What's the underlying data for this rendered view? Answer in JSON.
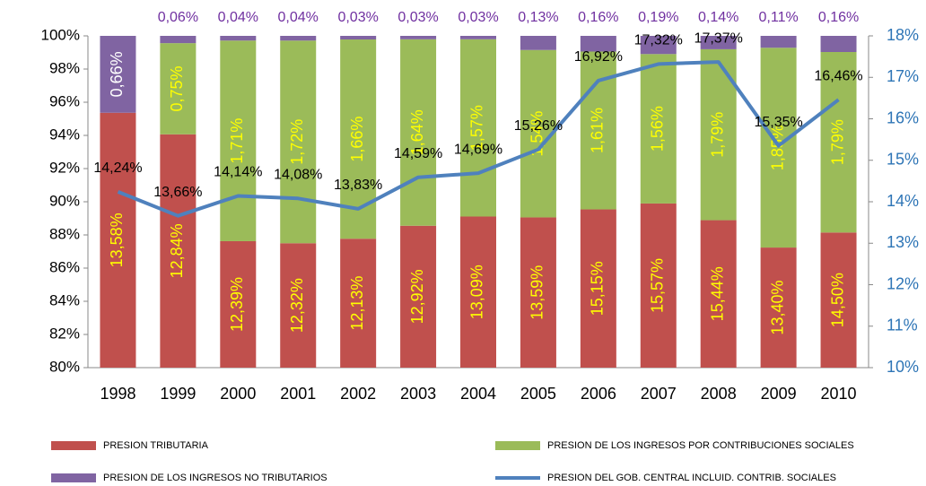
{
  "chart_data": {
    "type": "bar",
    "stacked": "percent",
    "categories": [
      "1998",
      "1999",
      "2000",
      "2001",
      "2002",
      "2003",
      "2004",
      "2005",
      "2006",
      "2007",
      "2008",
      "2009",
      "2010"
    ],
    "series": [
      {
        "name": "PRESION TRIBUTARIA",
        "color": "#c0504d",
        "values": [
          13.58,
          12.84,
          12.39,
          12.32,
          12.13,
          12.92,
          13.09,
          13.59,
          15.15,
          15.57,
          15.44,
          13.4,
          14.5
        ],
        "value_labels": [
          "13,58%",
          "12,84%",
          "12,39%",
          "12,32%",
          "12,13%",
          "12,92%",
          "13,09%",
          "13,59%",
          "15,15%",
          "15,57%",
          "15,44%",
          "13,40%",
          "14,50%"
        ]
      },
      {
        "name": "PRESION DE LOS INGRESOS POR CONTRIBUCIONES SOCIALES",
        "color": "#9bbb59",
        "values": [
          null,
          0.75,
          1.71,
          1.72,
          1.66,
          1.64,
          1.57,
          1.54,
          1.61,
          1.56,
          1.79,
          1.85,
          1.79
        ],
        "value_labels": [
          null,
          "0,75%",
          "1,71%",
          "1,72%",
          "1,66%",
          "1,64%",
          "1,57%",
          "1,54%",
          "1,61%",
          "1,56%",
          "1,79%",
          "1,85%",
          "1,79%"
        ]
      },
      {
        "name": "PRESION DE LOS INGRESOS NO TRIBUTARIOS",
        "color": "#8064a2",
        "values": [
          0.66,
          0.06,
          0.04,
          0.04,
          0.03,
          0.03,
          0.03,
          0.13,
          0.16,
          0.19,
          0.14,
          0.11,
          0.16
        ],
        "value_labels": [
          "0,66%",
          "0,06%",
          "0,04%",
          "0,04%",
          "0,03%",
          "0,03%",
          "0,03%",
          "0,13%",
          "0,16%",
          "0,19%",
          "0,14%",
          "0,11%",
          "0,16%"
        ]
      },
      {
        "name": "PRESION DEL GOB. CENTRAL INCLUID. CONTRIB. SOCIALES",
        "color": "#4f81bd",
        "type": "line",
        "axis": "y2",
        "values": [
          14.24,
          13.66,
          14.14,
          14.08,
          13.83,
          14.59,
          14.69,
          15.26,
          16.92,
          17.32,
          17.37,
          15.35,
          16.46
        ],
        "value_labels": [
          "14,24%",
          "13,66%",
          "14,14%",
          "14,08%",
          "13,83%",
          "14,59%",
          "14,69%",
          "15,26%",
          "16,92%",
          "17,32%",
          "17,37%",
          "15,35%",
          "16,46%"
        ]
      }
    ],
    "ylim": [
      80,
      100
    ],
    "yticks": [
      {
        "value": 80,
        "label": "80%"
      },
      {
        "value": 82,
        "label": "82%"
      },
      {
        "value": 84,
        "label": "84%"
      },
      {
        "value": 86,
        "label": "86%"
      },
      {
        "value": 88,
        "label": "88%"
      },
      {
        "value": 90,
        "label": "90%"
      },
      {
        "value": 92,
        "label": "92%"
      },
      {
        "value": 94,
        "label": "94%"
      },
      {
        "value": 96,
        "label": "96%"
      },
      {
        "value": 98,
        "label": "98%"
      },
      {
        "value": 100,
        "label": "100%"
      }
    ],
    "y2lim": [
      10,
      18
    ],
    "y2ticks": [
      {
        "value": 10,
        "label": "10%"
      },
      {
        "value": 11,
        "label": "11%"
      },
      {
        "value": 12,
        "label": "12%"
      },
      {
        "value": 13,
        "label": "13%"
      },
      {
        "value": 14,
        "label": "14%"
      },
      {
        "value": 15,
        "label": "15%"
      },
      {
        "value": 16,
        "label": "16%"
      },
      {
        "value": 17,
        "label": "17%"
      },
      {
        "value": 18,
        "label": "18%"
      }
    ],
    "legend": "bottom"
  }
}
